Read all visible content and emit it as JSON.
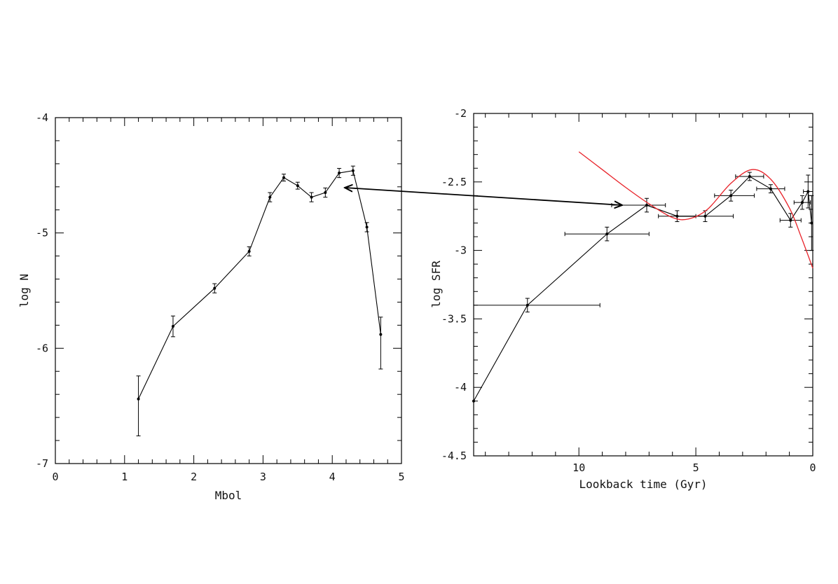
{
  "chart_data": [
    {
      "type": "line",
      "title": "",
      "xlabel": "Mbol",
      "ylabel": "log N",
      "xlim": [
        0,
        5
      ],
      "ylim": [
        -7,
        -4
      ],
      "xticks": [
        0,
        1,
        2,
        3,
        4,
        5
      ],
      "xtick_labels": [
        "0",
        "1",
        "2",
        "3",
        "4",
        "5"
      ],
      "yticks": [
        -7,
        -6,
        -5,
        -4
      ],
      "ytick_labels": [
        "-7",
        "-6",
        "-5",
        "-4"
      ],
      "grid": false,
      "series": [
        {
          "color": "#000000",
          "points": [
            {
              "x": 1.2,
              "y": -6.44,
              "yerr_lo": 0.32,
              "yerr_hi": 0.2
            },
            {
              "x": 1.7,
              "y": -5.81,
              "yerr_lo": 0.09,
              "yerr_hi": 0.09
            },
            {
              "x": 2.3,
              "y": -5.48,
              "yerr_lo": 0.04,
              "yerr_hi": 0.04
            },
            {
              "x": 2.8,
              "y": -5.16,
              "yerr_lo": 0.04,
              "yerr_hi": 0.04
            },
            {
              "x": 3.1,
              "y": -4.69,
              "yerr_lo": 0.04,
              "yerr_hi": 0.04
            },
            {
              "x": 3.3,
              "y": -4.52,
              "yerr_lo": 0.03,
              "yerr_hi": 0.03
            },
            {
              "x": 3.5,
              "y": -4.59,
              "yerr_lo": 0.03,
              "yerr_hi": 0.03
            },
            {
              "x": 3.7,
              "y": -4.69,
              "yerr_lo": 0.04,
              "yerr_hi": 0.04
            },
            {
              "x": 3.9,
              "y": -4.65,
              "yerr_lo": 0.04,
              "yerr_hi": 0.04
            },
            {
              "x": 4.1,
              "y": -4.48,
              "yerr_lo": 0.04,
              "yerr_hi": 0.04
            },
            {
              "x": 4.3,
              "y": -4.46,
              "yerr_lo": 0.04,
              "yerr_hi": 0.04
            },
            {
              "x": 4.5,
              "y": -4.95,
              "yerr_lo": 0.04,
              "yerr_hi": 0.04
            },
            {
              "x": 4.7,
              "y": -5.88,
              "yerr_lo": 0.3,
              "yerr_hi": 0.15
            }
          ]
        }
      ]
    },
    {
      "type": "line",
      "title": "",
      "xlabel": "Lookback time (Gyr)",
      "ylabel": "log SFR",
      "xlim": [
        14.5,
        0
      ],
      "ylim": [
        -4.5,
        -2
      ],
      "xticks": [
        10,
        5,
        0
      ],
      "xtick_labels": [
        "10",
        "5",
        "0"
      ],
      "yticks": [
        -4.5,
        -4,
        -3.5,
        -3,
        -2.5,
        -2
      ],
      "ytick_labels": [
        "-4.5",
        "-4",
        "-3.5",
        "-3",
        "-2.5",
        "-2"
      ],
      "grid": false,
      "series": [
        {
          "color": "#000000",
          "points": [
            {
              "x": 14.5,
              "y": -4.1
            },
            {
              "x": 12.2,
              "y": -3.4,
              "xerr_lo": 2.3,
              "xerr_hi": 3.1,
              "yerr_lo": 0.05,
              "yerr_hi": 0.05
            },
            {
              "x": 8.8,
              "y": -2.88,
              "xerr_lo": 1.8,
              "xerr_hi": 1.8,
              "yerr_lo": 0.05,
              "yerr_hi": 0.05
            },
            {
              "x": 7.1,
              "y": -2.67,
              "xerr_lo": 1.5,
              "xerr_hi": 0.8,
              "yerr_lo": 0.05,
              "yerr_hi": 0.05
            },
            {
              "x": 5.8,
              "y": -2.75,
              "xerr_lo": 0.8,
              "xerr_hi": 0.8,
              "yerr_lo": 0.04,
              "yerr_hi": 0.04
            },
            {
              "x": 4.6,
              "y": -2.75,
              "xerr_lo": 1.2,
              "xerr_hi": 1.2,
              "yerr_lo": 0.04,
              "yerr_hi": 0.04
            },
            {
              "x": 3.5,
              "y": -2.6,
              "xerr_lo": 0.7,
              "xerr_hi": 1.0,
              "yerr_lo": 0.04,
              "yerr_hi": 0.04
            },
            {
              "x": 2.7,
              "y": -2.46,
              "xerr_lo": 0.6,
              "xerr_hi": 0.6,
              "yerr_lo": 0.03,
              "yerr_hi": 0.03
            },
            {
              "x": 1.8,
              "y": -2.55,
              "xerr_lo": 0.6,
              "xerr_hi": 0.6,
              "yerr_lo": 0.03,
              "yerr_hi": 0.03
            },
            {
              "x": 0.95,
              "y": -2.78,
              "xerr_lo": 0.45,
              "xerr_hi": 0.45,
              "yerr_lo": 0.05,
              "yerr_hi": 0.05
            },
            {
              "x": 0.45,
              "y": -2.65,
              "xerr_lo": 0.35,
              "xerr_hi": 0.35,
              "yerr_lo": 0.05,
              "yerr_hi": 0.05
            },
            {
              "x": 0.2,
              "y": -2.57,
              "xerr_lo": 0.2,
              "xerr_hi": 0.2,
              "yerr_lo": 0.12,
              "yerr_hi": 0.12
            },
            {
              "x": 0.05,
              "y": -2.8,
              "yerr_lo": 0.2,
              "yerr_hi": 0.2
            }
          ]
        },
        {
          "color": "#e8232a",
          "style": "smooth-model-curve",
          "points": [
            {
              "x": 10.0,
              "y": -2.28
            },
            {
              "x": 9.0,
              "y": -2.41
            },
            {
              "x": 8.0,
              "y": -2.54
            },
            {
              "x": 7.0,
              "y": -2.66
            },
            {
              "x": 6.0,
              "y": -2.76
            },
            {
              "x": 5.3,
              "y": -2.77
            },
            {
              "x": 4.5,
              "y": -2.7
            },
            {
              "x": 3.5,
              "y": -2.51
            },
            {
              "x": 2.6,
              "y": -2.41
            },
            {
              "x": 1.8,
              "y": -2.48
            },
            {
              "x": 1.0,
              "y": -2.69
            },
            {
              "x": 0.5,
              "y": -2.9
            },
            {
              "x": 0.0,
              "y": -3.13
            }
          ]
        }
      ]
    }
  ]
}
